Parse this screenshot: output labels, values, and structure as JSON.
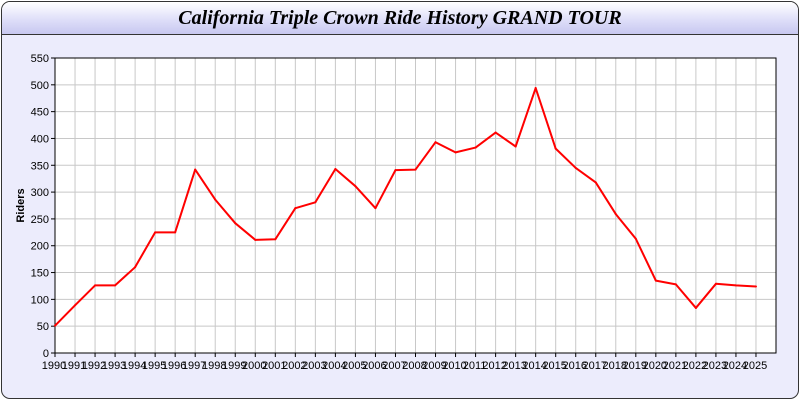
{
  "chart_data": {
    "type": "line",
    "title": "California Triple Crown Ride History GRAND TOUR",
    "xlabel": "",
    "ylabel": "Riders",
    "xlim": [
      1990,
      2026
    ],
    "ylim": [
      0,
      550
    ],
    "yticks": [
      0,
      50,
      100,
      150,
      200,
      250,
      300,
      350,
      400,
      450,
      500,
      550
    ],
    "grid": true,
    "line_color": "#ff0000",
    "x": [
      1990,
      1991,
      1992,
      1993,
      1994,
      1995,
      1996,
      1997,
      1998,
      1999,
      2000,
      2001,
      2002,
      2003,
      2004,
      2005,
      2006,
      2007,
      2008,
      2009,
      2010,
      2011,
      2012,
      2013,
      2014,
      2015,
      2016,
      2017,
      2018,
      2019,
      2020,
      2021,
      2022,
      2023,
      2024,
      2025
    ],
    "series": [
      {
        "values": [
          51,
          89,
          126,
          126,
          160,
          225,
          225,
          342,
          286,
          242,
          211,
          212,
          270,
          281,
          343,
          311,
          270,
          341,
          342,
          393,
          374,
          383,
          411,
          385,
          494,
          381,
          345,
          318,
          259,
          213,
          135,
          128,
          84,
          129,
          126,
          124
        ]
      }
    ]
  }
}
